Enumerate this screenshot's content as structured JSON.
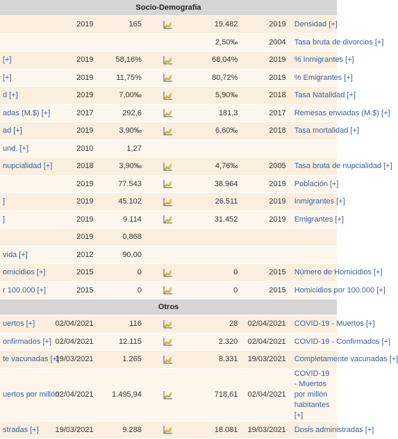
{
  "sections": [
    {
      "title": "Socio-Demografía",
      "rows": [
        {
          "left": "",
          "date": "2019",
          "value": "165",
          "chart": true,
          "right_value": "19.482",
          "right_date": "2019",
          "right_label": "Densidad [+]"
        },
        {
          "left": "",
          "date": "",
          "value": "",
          "chart": false,
          "right_value": "2,50‰",
          "right_date": "2004",
          "right_label": "Tasa bruta de divorcios [+]"
        },
        {
          "left": "[+]",
          "date": "2019",
          "value": "58,16%",
          "chart": true,
          "right_value": "68,04%",
          "right_date": "2019",
          "right_label": "% Inmigrantes [+]"
        },
        {
          "left": "[+]",
          "date": "2019",
          "value": "11,75%",
          "chart": true,
          "right_value": "80,72%",
          "right_date": "2019",
          "right_label": "% Emigrantes [+]"
        },
        {
          "left": "d [+]",
          "date": "2019",
          "value": "7,00‰",
          "chart": true,
          "right_value": "5,90‰",
          "right_date": "2018",
          "right_label": "Tasa Natalidad [+]"
        },
        {
          "left": "adas (M.$) [+]",
          "date": "2017",
          "value": "292,6",
          "chart": true,
          "right_value": "181,3",
          "right_date": "2017",
          "right_label": "Remesas enviadas (M.$) [+]"
        },
        {
          "left": "ad [+]",
          "date": "2019",
          "value": "3,90‰",
          "chart": true,
          "right_value": "6,60‰",
          "right_date": "2018",
          "right_label": "Tasa mortalidad [+]"
        },
        {
          "left": "und. [+]",
          "date": "2010",
          "value": "1,27",
          "chart": false,
          "right_value": "",
          "right_date": "",
          "right_label": ""
        },
        {
          "left": "nupcialidad [+]",
          "date": "2018",
          "value": "3,90‰",
          "chart": true,
          "right_value": "4,76‰",
          "right_date": "2005",
          "right_label": "Tasa bruta de nupcialidad [+]"
        },
        {
          "left": "",
          "date": "2019",
          "value": "77.543",
          "chart": true,
          "right_value": "38.964",
          "right_date": "2019",
          "right_label": "Población [+]"
        },
        {
          "left": "]",
          "date": "2019",
          "value": "45.102",
          "chart": true,
          "right_value": "26.511",
          "right_date": "2019",
          "right_label": "Inmigrantes [+]"
        },
        {
          "left": "]",
          "date": "2019",
          "value": "9.114",
          "chart": true,
          "right_value": "31.452",
          "right_date": "2019",
          "right_label": "Emigrantes [+]"
        },
        {
          "left": "",
          "date": "2019",
          "value": "0,868",
          "chart": false,
          "right_value": "",
          "right_date": "",
          "right_label": ""
        },
        {
          "left": "vida [+]",
          "date": "2012",
          "value": "90,00",
          "chart": false,
          "right_value": "",
          "right_date": "",
          "right_label": ""
        },
        {
          "left": "omicidios [+]",
          "date": "2015",
          "value": "0",
          "chart": true,
          "right_value": "0",
          "right_date": "2015",
          "right_label": "Número de Homicidios [+]"
        },
        {
          "left": "r 100.000 [+]",
          "date": "2015",
          "value": "0",
          "chart": true,
          "right_value": "0",
          "right_date": "2015",
          "right_label": "Homicidios por 100.000 [+]"
        }
      ]
    },
    {
      "title": "Otros",
      "rows": [
        {
          "left": "uertos [+]",
          "date": "02/04/2021",
          "value": "116",
          "chart": true,
          "right_value": "28",
          "right_date": "02/04/2021",
          "right_label": "COVID-19 - Muertos [+]"
        },
        {
          "left": "onfirmados [+]",
          "date": "02/04/2021",
          "value": "12.115",
          "chart": true,
          "right_value": "2.320",
          "right_date": "02/04/2021",
          "right_label": "COVID-19 - Confirmados [+]"
        },
        {
          "left": "te vacunadas [+]",
          "date": "19/03/2021",
          "value": "1.265",
          "chart": true,
          "right_value": "8.331",
          "right_date": "19/03/2021",
          "right_label": "Completamente vacunadas [+]"
        },
        {
          "left": "uertos por millón",
          "date": "02/04/2021",
          "value": "1.495,94",
          "chart": true,
          "right_value": "718,61",
          "right_date": "02/04/2021",
          "right_label": "COVID-19 - Muertos por millón habitantes [+]",
          "wrap": true
        },
        {
          "left": "stradas [+]",
          "date": "19/03/2021",
          "value": "9.288",
          "chart": true,
          "right_value": "18.081",
          "right_date": "19/03/2021",
          "right_label": "Dosis administradas [+]"
        }
      ]
    }
  ],
  "colors": {
    "header_bg": "#d6d6d6",
    "row_odd": "#faefdf",
    "row_even": "#fcf6ec",
    "link": "#3a5f9f",
    "chart_icon": "#e6a817"
  },
  "icon": "chart-trend-icon"
}
